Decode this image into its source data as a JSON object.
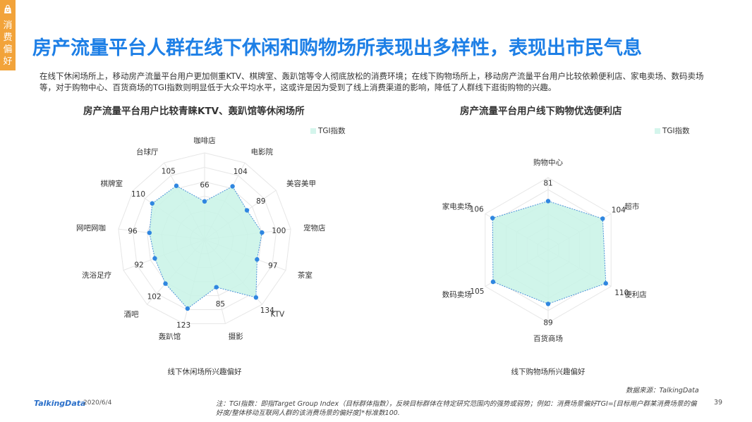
{
  "side_tab": {
    "label": "消费偏好",
    "icon": "shopping-bag-icon",
    "color": "#f2a33a"
  },
  "title": "房产流量平台人群在线下休闲和购物场所表现出多样性，表现出市民气息",
  "intro": "在线下休闲场所上，移动房产流量平台用户更加侧重KTV、棋牌室、轰趴馆等令人彻底放松的消费环境；在线下购物场所上，移动房产流量平台用户比较依赖便利店、家电卖场、数码卖场等，对于购物中心、百货商场的TGI指数则明显低于大众平均水平，这或许是因为受到了线上消费渠道的影响，降低了人群线下逛街购物的兴趣。",
  "chart_data": [
    {
      "type": "radar",
      "title": "房产流量平台用户比较青睐KTV、轰趴馆等休闲场所",
      "xlabel": "线下休闲场所兴趣偏好",
      "legend": "TGI指数",
      "legend_position": "top-right",
      "categories": [
        "咖啡店",
        "电影院",
        "美容美甲",
        "宠物店",
        "茶室",
        "KTV",
        "摄影",
        "轰趴馆",
        "酒吧",
        "洗浴足疗",
        "网吧网咖",
        "棋牌室",
        "台球厅"
      ],
      "values": [
        66,
        104,
        89,
        100,
        97,
        134,
        85,
        123,
        102,
        92,
        96,
        110,
        105
      ],
      "rmax": 150,
      "rings": 6,
      "colors": {
        "fill": "#c8f3e6",
        "line": "#4a90d9",
        "point": "#2f86e0",
        "grid": "#e6e6e6"
      }
    },
    {
      "type": "radar",
      "title": "房产流量平台用户线下购物优选便利店",
      "xlabel": "线下购物场所兴趣偏好",
      "legend": "TGI指数",
      "legend_position": "top-right",
      "categories": [
        "购物中心",
        "超市",
        "便利店",
        "百货商场",
        "数码卖场",
        "家电卖场"
      ],
      "values": [
        81,
        104,
        110,
        89,
        105,
        106
      ],
      "rmax": 120,
      "rings": 6,
      "colors": {
        "fill": "#c8f3e6",
        "line": "#4a90d9",
        "point": "#2f86e0",
        "grid": "#e6e6e6"
      }
    }
  ],
  "footer": {
    "logo": "TalkingData",
    "date": "2020/6/4",
    "source": "数据来源：TalkingData",
    "note": "注：TGI指数：即指Target Group Index（目标群体指数），反映目标群体在特定研究范围内的强势或弱势；例如：消费场景偏好TGI=[目标用户群某消费场景的偏好度/整体移动互联网人群的该消费场景的偏好度]*标准数100.",
    "page": "39"
  }
}
